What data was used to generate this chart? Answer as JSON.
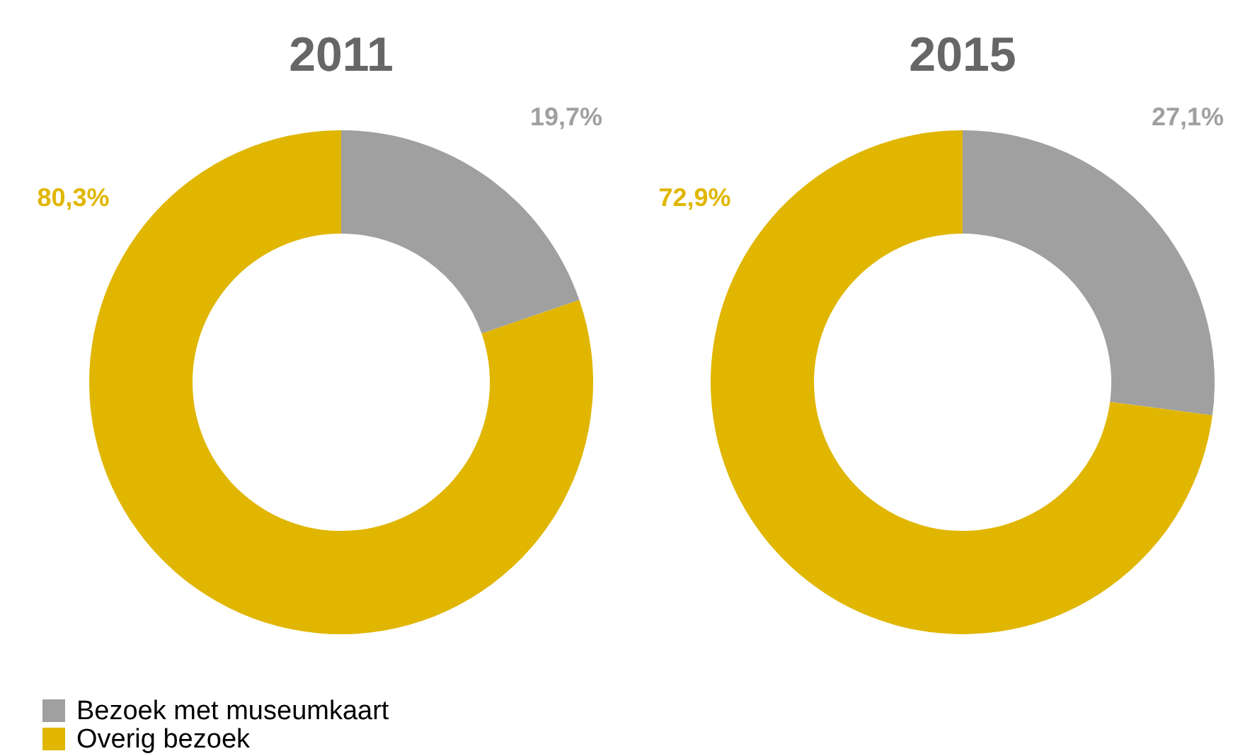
{
  "chart_data": [
    {
      "type": "donut",
      "title": "2011",
      "categories": [
        "Bezoek met museumkaart",
        "Overig bezoek"
      ],
      "values": [
        19.7,
        80.3
      ],
      "colors": [
        "#a0a0a0",
        "#e0b600"
      ],
      "value_labels": [
        "19,7%",
        "80,3%"
      ],
      "legend": "bottom"
    },
    {
      "type": "donut",
      "title": "2015",
      "categories": [
        null,
        null
      ],
      "values": [
        27.1,
        72.9
      ],
      "colors": [
        "#a0a0a0",
        "#e0b600"
      ],
      "value_labels": [
        "27,1%",
        "72,9%"
      ]
    }
  ]
}
